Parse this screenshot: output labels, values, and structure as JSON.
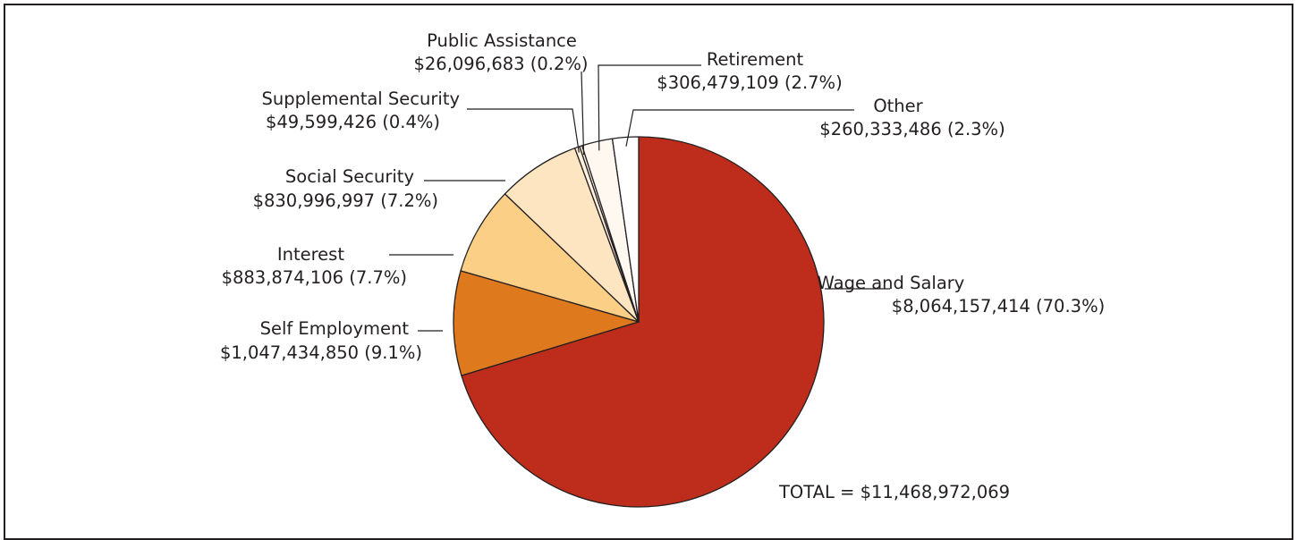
{
  "chart_data": {
    "type": "pie",
    "title": "",
    "total_label": "TOTAL = $11,468,972,069",
    "slices": [
      {
        "label": "Wage and Salary",
        "value": 8064157414,
        "value_label": "$8,064,157,414 (70.3%)",
        "percent": 70.3,
        "color": "#be2d1c"
      },
      {
        "label": "Self Employment",
        "value": 1047434850,
        "value_label": "$1,047,434,850 (9.1%)",
        "percent": 9.1,
        "color": "#de791e"
      },
      {
        "label": "Interest",
        "value": 883874106,
        "value_label": "$883,874,106 (7.7%)",
        "percent": 7.7,
        "color": "#fccf86"
      },
      {
        "label": "Social Security",
        "value": 830996997,
        "value_label": "$830,996,997 (7.2%)",
        "percent": 7.2,
        "color": "#fde5c1"
      },
      {
        "label": "Supplemental Security",
        "value": 49599426,
        "value_label": "$49,599,426 (0.4%)",
        "percent": 0.4,
        "color": "#fdf0dc"
      },
      {
        "label": "Public Assistance",
        "value": 26096683,
        "value_label": "$26,096,683 (0.2%)",
        "percent": 0.2,
        "color": "#fef6ea"
      },
      {
        "label": "Retirement",
        "value": 306479109,
        "value_label": "$306,479,109 (2.7%)",
        "percent": 2.7,
        "color": "#fef8f0"
      },
      {
        "label": "Other",
        "value": 260333486,
        "value_label": "$260,333,486 (2.3%)",
        "percent": 2.3,
        "color": "#ffffff"
      }
    ]
  }
}
